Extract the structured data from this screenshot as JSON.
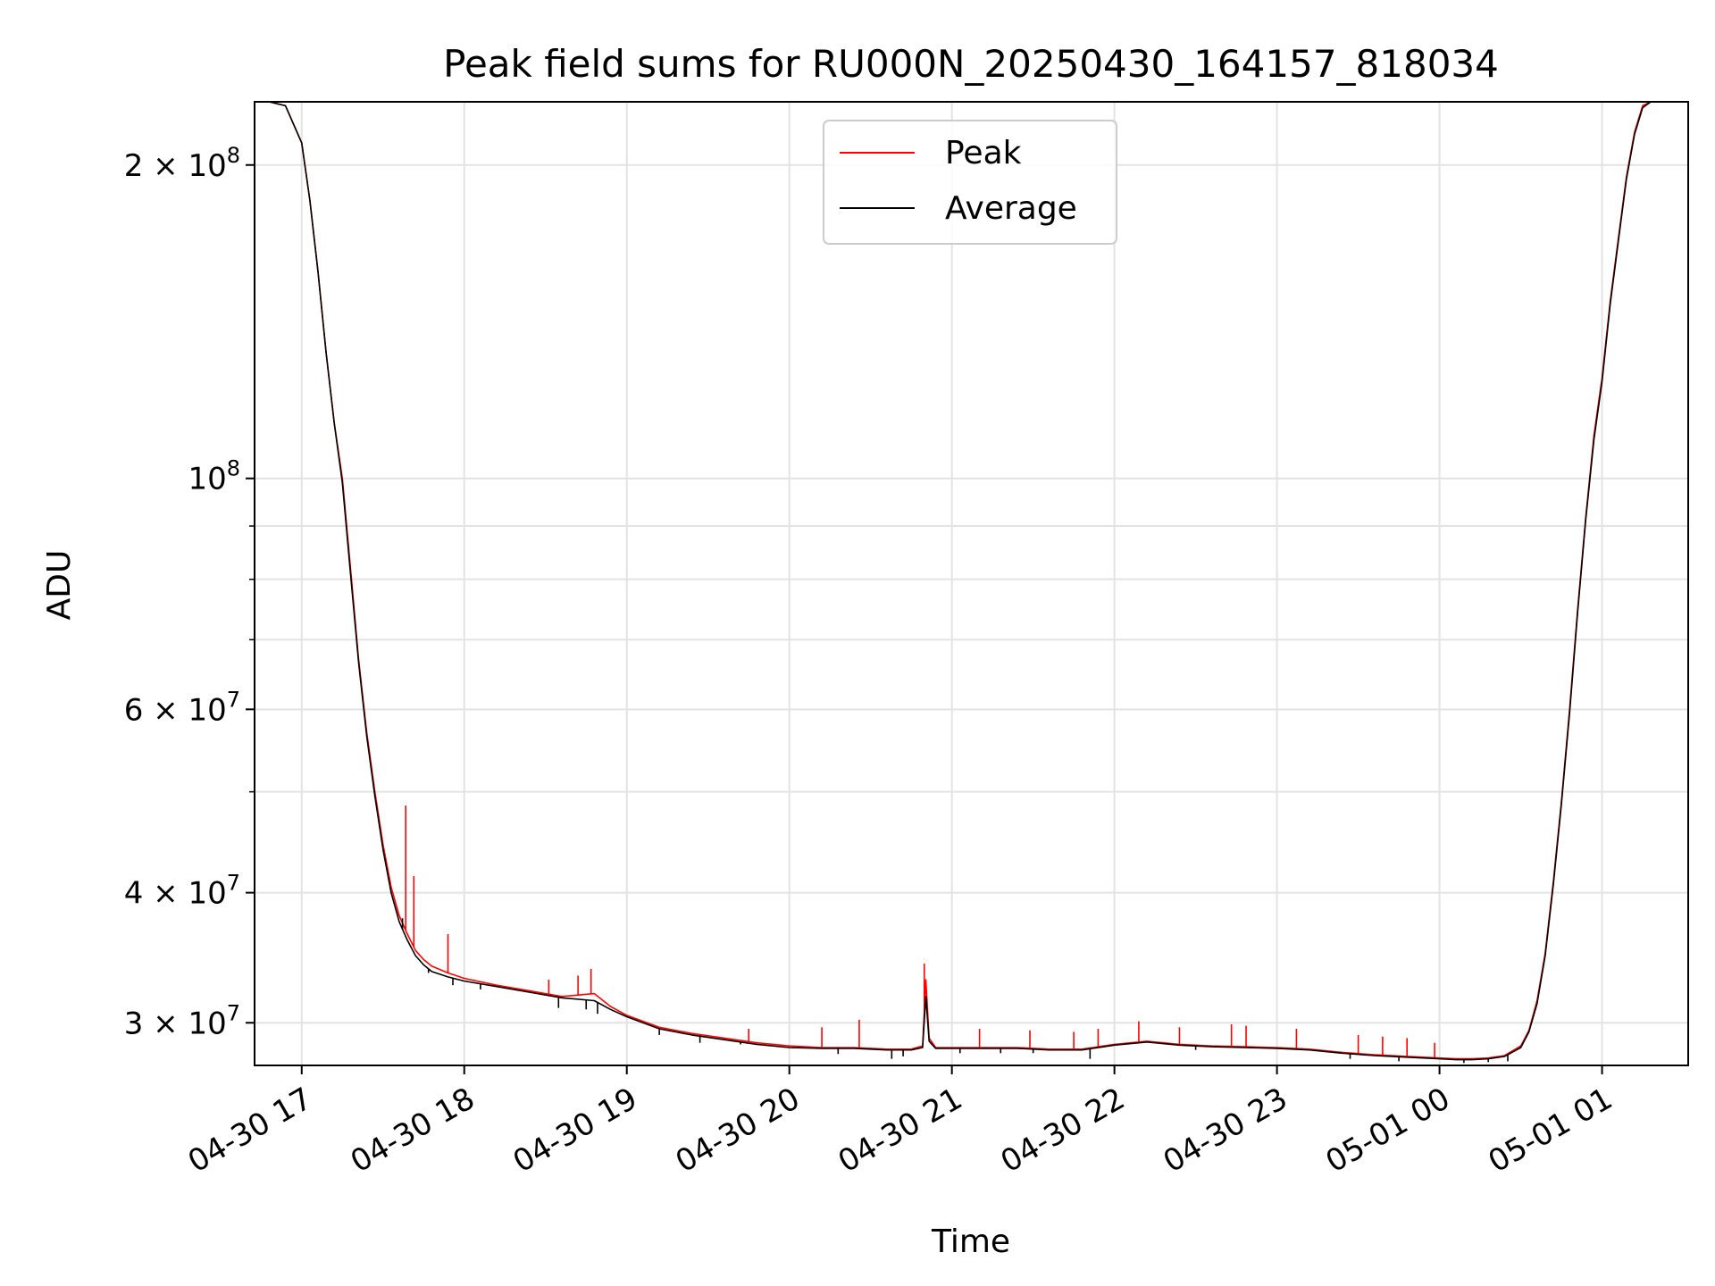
{
  "chart_data": {
    "type": "line",
    "title": "Peak field sums for RU000N_20250430_164157_818034",
    "xlabel": "Time",
    "ylabel": "ADU",
    "yscale": "log",
    "x_unit": "hours since 04-30 00:00",
    "xlim": [
      16.71,
      25.53
    ],
    "ylim": [
      27300000,
      230000000
    ],
    "grid": true,
    "legend_position": "upper center",
    "x_ticks": [
      {
        "value": 17,
        "label": "04-30 17"
      },
      {
        "value": 18,
        "label": "04-30 18"
      },
      {
        "value": 19,
        "label": "04-30 19"
      },
      {
        "value": 20,
        "label": "04-30 20"
      },
      {
        "value": 21,
        "label": "04-30 21"
      },
      {
        "value": 22,
        "label": "04-30 22"
      },
      {
        "value": 23,
        "label": "04-30 23"
      },
      {
        "value": 24,
        "label": "05-01 00"
      },
      {
        "value": 25,
        "label": "05-01 01"
      }
    ],
    "y_ticks": [
      {
        "value": 30000000,
        "base": "3 × 10",
        "exp": "7"
      },
      {
        "value": 40000000,
        "base": "4 × 10",
        "exp": "7"
      },
      {
        "value": 60000000,
        "base": "6 × 10",
        "exp": "7"
      },
      {
        "value": 100000000,
        "base": "10",
        "exp": "8"
      },
      {
        "value": 200000000,
        "base": "2 × 10",
        "exp": "8"
      }
    ],
    "y_minor_ticks": [
      50000000,
      70000000,
      80000000,
      90000000
    ],
    "series": [
      {
        "name": "Peak",
        "color": "#ff0000",
        "x": [
          16.71,
          16.8,
          16.9,
          17.0,
          17.05,
          17.1,
          17.15,
          17.2,
          17.25,
          17.3,
          17.35,
          17.4,
          17.45,
          17.5,
          17.55,
          17.6,
          17.65,
          17.7,
          17.75,
          17.8,
          17.9,
          18.0,
          18.2,
          18.4,
          18.6,
          18.8,
          18.9,
          19.0,
          19.2,
          19.4,
          19.6,
          19.8,
          20.0,
          20.2,
          20.4,
          20.6,
          20.75,
          20.82,
          20.84,
          20.86,
          20.9,
          21.0,
          21.2,
          21.4,
          21.6,
          21.8,
          22.0,
          22.2,
          22.4,
          22.6,
          22.8,
          23.0,
          23.2,
          23.4,
          23.6,
          23.8,
          24.0,
          24.1,
          24.2,
          24.3,
          24.4,
          24.5,
          24.55,
          24.6,
          24.65,
          24.7,
          24.75,
          24.8,
          24.85,
          24.9,
          24.95,
          25.0,
          25.05,
          25.1,
          25.15,
          25.2,
          25.25,
          25.3,
          25.4,
          25.53
        ],
        "y": [
          230000000,
          230000000,
          228000000,
          210000000,
          185000000,
          158000000,
          132000000,
          113000000,
          100000000,
          82000000,
          67000000,
          57000000,
          50000000,
          44500000,
          40500000,
          38000000,
          36500000,
          35200000,
          34500000,
          34000000,
          33500000,
          33100000,
          32600000,
          32200000,
          31800000,
          32000000,
          31100000,
          30500000,
          29700000,
          29300000,
          29000000,
          28700000,
          28500000,
          28400000,
          28400000,
          28300000,
          28300000,
          28500000,
          33000000,
          29000000,
          28400000,
          28400000,
          28400000,
          28400000,
          28300000,
          28300000,
          28600000,
          28800000,
          28600000,
          28500000,
          28450000,
          28400000,
          28300000,
          28100000,
          27950000,
          27850000,
          27750000,
          27700000,
          27700000,
          27750000,
          27900000,
          28500000,
          29500000,
          31500000,
          35000000,
          41000000,
          49000000,
          60000000,
          75000000,
          92000000,
          110000000,
          125000000,
          148000000,
          170000000,
          195000000,
          215000000,
          228000000,
          230000000,
          230000000,
          230000000
        ],
        "spikes": [
          {
            "x": 17.64,
            "y": 48500000
          },
          {
            "x": 17.69,
            "y": 41500000
          },
          {
            "x": 17.9,
            "y": 36500000
          },
          {
            "x": 18.52,
            "y": 33000000
          },
          {
            "x": 18.7,
            "y": 33300000
          },
          {
            "x": 18.78,
            "y": 33800000
          },
          {
            "x": 19.75,
            "y": 29600000
          },
          {
            "x": 20.2,
            "y": 29700000
          },
          {
            "x": 20.43,
            "y": 30200000
          },
          {
            "x": 20.83,
            "y": 34200000
          },
          {
            "x": 21.17,
            "y": 29600000
          },
          {
            "x": 21.48,
            "y": 29500000
          },
          {
            "x": 21.75,
            "y": 29400000
          },
          {
            "x": 21.9,
            "y": 29600000
          },
          {
            "x": 22.15,
            "y": 30100000
          },
          {
            "x": 22.4,
            "y": 29700000
          },
          {
            "x": 22.72,
            "y": 29900000
          },
          {
            "x": 22.81,
            "y": 29800000
          },
          {
            "x": 23.12,
            "y": 29600000
          },
          {
            "x": 23.5,
            "y": 29200000
          },
          {
            "x": 23.65,
            "y": 29100000
          },
          {
            "x": 23.8,
            "y": 29000000
          },
          {
            "x": 23.97,
            "y": 28700000
          }
        ]
      },
      {
        "name": "Average",
        "color": "#000000",
        "x": [
          16.71,
          16.8,
          16.9,
          17.0,
          17.05,
          17.1,
          17.15,
          17.2,
          17.25,
          17.3,
          17.35,
          17.4,
          17.45,
          17.5,
          17.55,
          17.6,
          17.65,
          17.7,
          17.75,
          17.8,
          17.9,
          18.0,
          18.2,
          18.4,
          18.6,
          18.8,
          18.9,
          19.0,
          19.2,
          19.4,
          19.6,
          19.8,
          20.0,
          20.2,
          20.4,
          20.6,
          20.75,
          20.82,
          20.84,
          20.86,
          20.9,
          21.0,
          21.2,
          21.4,
          21.6,
          21.8,
          22.0,
          22.2,
          22.4,
          22.6,
          22.8,
          23.0,
          23.2,
          23.4,
          23.6,
          23.8,
          24.0,
          24.1,
          24.2,
          24.3,
          24.4,
          24.5,
          24.55,
          24.6,
          24.65,
          24.7,
          24.75,
          24.8,
          24.85,
          24.9,
          24.95,
          25.0,
          25.05,
          25.1,
          25.15,
          25.2,
          25.25,
          25.3,
          25.4,
          25.53
        ],
        "y": [
          230000000,
          230000000,
          228000000,
          210000000,
          185000000,
          158000000,
          132000000,
          113000000,
          99000000,
          81000000,
          66500000,
          56500000,
          49500000,
          44000000,
          40000000,
          37500000,
          36000000,
          34800000,
          34100000,
          33600000,
          33200000,
          32900000,
          32500000,
          32100000,
          31700000,
          31500000,
          30900000,
          30400000,
          29600000,
          29200000,
          28900000,
          28600000,
          28400000,
          28350000,
          28350000,
          28250000,
          28250000,
          28400000,
          31800000,
          28800000,
          28350000,
          28350000,
          28350000,
          28350000,
          28250000,
          28250000,
          28550000,
          28750000,
          28550000,
          28450000,
          28400000,
          28350000,
          28250000,
          28050000,
          27900000,
          27800000,
          27700000,
          27650000,
          27650000,
          27700000,
          27850000,
          28400000,
          29400000,
          31300000,
          34800000,
          40700000,
          48700000,
          59500000,
          74500000,
          91500000,
          109000000,
          124000000,
          147000000,
          169000000,
          194000000,
          214000000,
          227000000,
          230000000,
          230000000,
          230000000
        ],
        "dips": [
          {
            "x": 17.62,
            "y": 37800000
          },
          {
            "x": 17.78,
            "y": 33500000
          },
          {
            "x": 17.93,
            "y": 32600000
          },
          {
            "x": 18.1,
            "y": 32300000
          },
          {
            "x": 18.58,
            "y": 31000000
          },
          {
            "x": 18.75,
            "y": 30900000
          },
          {
            "x": 18.82,
            "y": 30600000
          },
          {
            "x": 19.2,
            "y": 29200000
          },
          {
            "x": 19.45,
            "y": 28700000
          },
          {
            "x": 19.7,
            "y": 28600000
          },
          {
            "x": 20.3,
            "y": 28000000
          },
          {
            "x": 20.63,
            "y": 27700000
          },
          {
            "x": 20.7,
            "y": 27850000
          },
          {
            "x": 21.05,
            "y": 28050000
          },
          {
            "x": 21.3,
            "y": 28050000
          },
          {
            "x": 21.5,
            "y": 28050000
          },
          {
            "x": 21.85,
            "y": 27700000
          },
          {
            "x": 22.5,
            "y": 28250000
          },
          {
            "x": 23.45,
            "y": 27700000
          },
          {
            "x": 23.75,
            "y": 27550000
          },
          {
            "x": 24.15,
            "y": 27450000
          },
          {
            "x": 24.3,
            "y": 27500000
          },
          {
            "x": 24.42,
            "y": 27550000
          }
        ]
      }
    ]
  }
}
